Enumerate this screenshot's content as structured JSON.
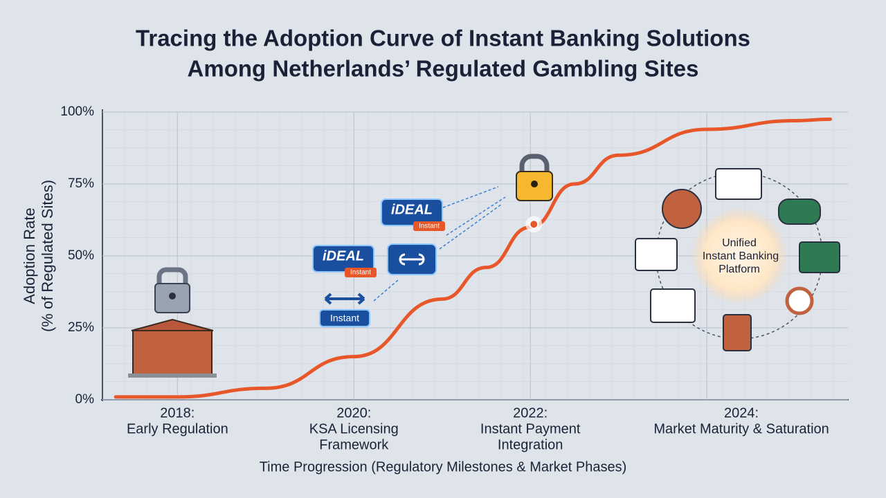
{
  "chart_data": {
    "type": "line",
    "title": [
      "Tracing the Adoption Curve of Instant Banking Solutions",
      "Among Netherlands’ Regulated Gambling Sites"
    ],
    "y_label": [
      "Adoption Rate",
      "(% of Regulated Sites)"
    ],
    "x_label": "Time Progression (Regulatory Milestones & Market Phases)",
    "xlim": [
      2017.15,
      2025.6
    ],
    "ylim": [
      0,
      100
    ],
    "xticks": [
      {
        "value": 2018,
        "label": "2018:"
      },
      {
        "value": 2020,
        "label": "2020:"
      },
      {
        "value": 2022,
        "label": "2022:"
      },
      {
        "value": 2024,
        "label": "2024:"
      }
    ],
    "phases": [
      [
        "Early Regulation"
      ],
      [
        "KSA Licensing",
        "Framework"
      ],
      [
        "Instant Payment",
        "Integration"
      ],
      [
        "Market Maturity & Saturation"
      ]
    ],
    "yticks": [
      {
        "value": 0,
        "label": "0%"
      },
      {
        "value": 25,
        "label": "25%"
      },
      {
        "value": 50,
        "label": "50%"
      },
      {
        "value": 75,
        "label": "75%"
      },
      {
        "value": 100,
        "label": "100%"
      }
    ],
    "grid": true,
    "series": [
      {
        "color": "#e8572a",
        "x": [
          2017.3,
          2018,
          2019,
          2020,
          2021,
          2021.5,
          2022,
          2022.5,
          2023,
          2024,
          2025,
          2025.4
        ],
        "values": [
          1,
          1,
          4,
          15,
          35,
          46,
          60,
          75,
          85,
          94,
          97,
          97.5
        ]
      }
    ],
    "highlight": {
      "x": 2022.04,
      "value": 61
    },
    "badges": [
      {
        "title": "iDEAL",
        "tag": "Instant"
      },
      {
        "title": "iDEAL",
        "tag": "Instant"
      }
    ],
    "arrow_badge": "Instant",
    "hub": [
      "Unified",
      "Instant Banking",
      "Platform"
    ]
  }
}
